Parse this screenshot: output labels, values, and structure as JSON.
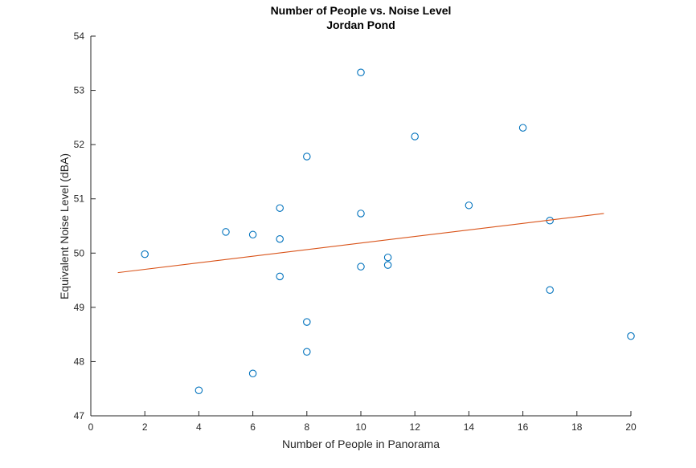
{
  "chart_data": {
    "type": "scatter",
    "title": "Number of People vs. Noise Level",
    "subtitle": "Jordan Pond",
    "xlabel": "Number of People in Panorama",
    "ylabel": "Equivalent Noise Level (dBA)",
    "xlim": [
      0,
      20
    ],
    "ylim": [
      47,
      54
    ],
    "xticks": [
      0,
      2,
      4,
      6,
      8,
      10,
      12,
      14,
      16,
      18,
      20
    ],
    "yticks": [
      47,
      48,
      49,
      50,
      51,
      52,
      53,
      54
    ],
    "grid": false,
    "legend": "none",
    "series": [
      {
        "type": "scatter",
        "marker": "circle",
        "color": "#0072BD",
        "points": [
          {
            "x": 2,
            "y": 49.98
          },
          {
            "x": 4,
            "y": 47.47
          },
          {
            "x": 5,
            "y": 50.39
          },
          {
            "x": 6,
            "y": 50.34
          },
          {
            "x": 6,
            "y": 47.78
          },
          {
            "x": 7,
            "y": 50.83
          },
          {
            "x": 7,
            "y": 50.26
          },
          {
            "x": 7,
            "y": 49.57
          },
          {
            "x": 8,
            "y": 51.78
          },
          {
            "x": 8,
            "y": 48.73
          },
          {
            "x": 8,
            "y": 48.18
          },
          {
            "x": 10,
            "y": 53.33
          },
          {
            "x": 10,
            "y": 50.73
          },
          {
            "x": 10,
            "y": 49.75
          },
          {
            "x": 11,
            "y": 49.92
          },
          {
            "x": 11,
            "y": 49.78
          },
          {
            "x": 12,
            "y": 52.15
          },
          {
            "x": 14,
            "y": 50.88
          },
          {
            "x": 16,
            "y": 52.31
          },
          {
            "x": 17,
            "y": 50.6
          },
          {
            "x": 17,
            "y": 49.32
          },
          {
            "x": 20,
            "y": 48.47
          }
        ]
      },
      {
        "type": "line",
        "color": "#D95319",
        "points": [
          {
            "x": 1,
            "y": 49.64
          },
          {
            "x": 19,
            "y": 50.73
          }
        ]
      }
    ]
  }
}
